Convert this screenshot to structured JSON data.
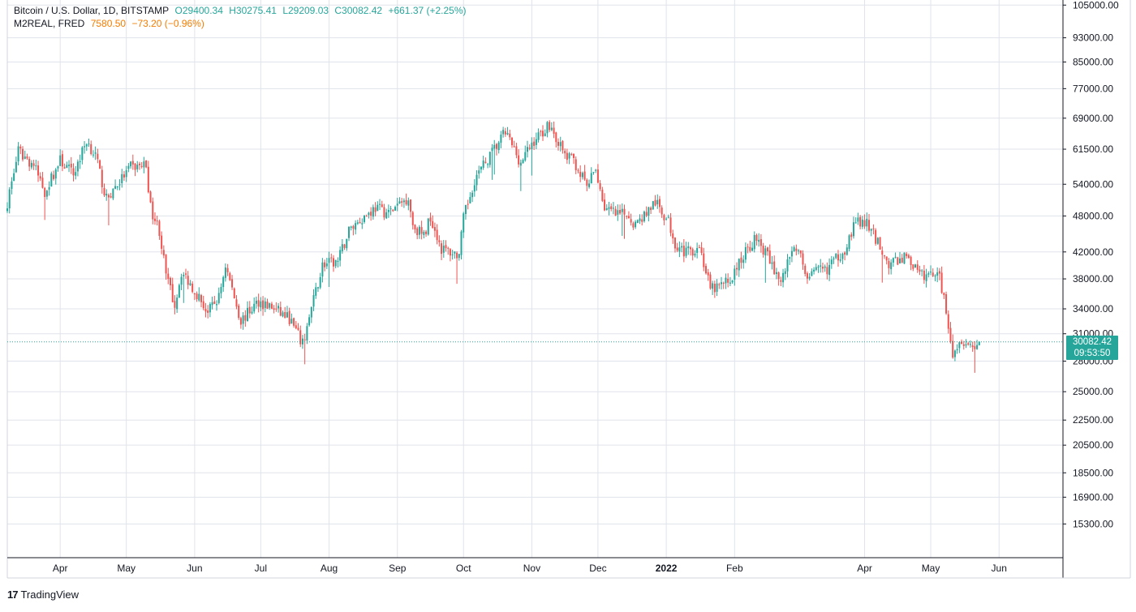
{
  "legend": {
    "symbol": "Bitcoin / U.S. Dollar, 1D, BITSTAMP",
    "open": "O29400.34",
    "high": "H30275.41",
    "low": "L29209.03",
    "close": "C30082.42",
    "change": "+661.37 (+2.25%)",
    "overlay_name": "M2REAL, FRED",
    "overlay_value": "7580.50",
    "overlay_change": "−73.20 (−0.96%)"
  },
  "price_badge": {
    "price": "30082.42",
    "countdown": "09:53:50"
  },
  "branding": {
    "logo": "17",
    "name": "TradingView"
  },
  "colors": {
    "up": "#26a69a",
    "down": "#ef5350",
    "grid": "#e0e3eb",
    "overlay": "#f57c00"
  },
  "chart_data": {
    "type": "candlestick",
    "y_scale": "log",
    "ylim": [
      13500,
      107000
    ],
    "x_start": "2021-03-08",
    "x_end": "2022-06-30",
    "last_price": 30082.42,
    "y_ticks": [
      "105000.00",
      "93000.00",
      "85000.00",
      "77000.00",
      "69000.00",
      "61500.00",
      "54000.00",
      "48000.00",
      "42000.00",
      "38000.00",
      "34000.00",
      "31000.00",
      "28000.00",
      "25000.00",
      "22500.00",
      "20500.00",
      "18500.00",
      "16900.00",
      "15300.00"
    ],
    "x_ticks": [
      {
        "label": "Apr",
        "date": "2021-04-01",
        "bold": false
      },
      {
        "label": "May",
        "date": "2021-05-01",
        "bold": false
      },
      {
        "label": "Jun",
        "date": "2021-06-01",
        "bold": false
      },
      {
        "label": "Jul",
        "date": "2021-07-01",
        "bold": false
      },
      {
        "label": "Aug",
        "date": "2021-08-01",
        "bold": false
      },
      {
        "label": "Sep",
        "date": "2021-09-01",
        "bold": false
      },
      {
        "label": "Oct",
        "date": "2021-10-01",
        "bold": false
      },
      {
        "label": "Nov",
        "date": "2021-11-01",
        "bold": false
      },
      {
        "label": "Dec",
        "date": "2021-12-01",
        "bold": false
      },
      {
        "label": "2022",
        "date": "2022-01-01",
        "bold": true
      },
      {
        "label": "Feb",
        "date": "2022-02-01",
        "bold": false
      },
      {
        "label": "Apr",
        "date": "2022-04-01",
        "bold": false
      },
      {
        "label": "May",
        "date": "2022-05-01",
        "bold": false
      },
      {
        "label": "Jun",
        "date": "2022-06-01",
        "bold": false
      }
    ],
    "close_keypoints": [
      [
        "2021-03-08",
        50500
      ],
      [
        "2021-03-13",
        61000
      ],
      [
        "2021-03-20",
        58000
      ],
      [
        "2021-03-25",
        52500
      ],
      [
        "2021-04-01",
        59000
      ],
      [
        "2021-04-07",
        56000
      ],
      [
        "2021-04-13",
        63500
      ],
      [
        "2021-04-17",
        60000
      ],
      [
        "2021-04-22",
        51000
      ],
      [
        "2021-04-26",
        53500
      ],
      [
        "2021-05-03",
        57500
      ],
      [
        "2021-05-10",
        58000
      ],
      [
        "2021-05-12",
        49500
      ],
      [
        "2021-05-16",
        45500
      ],
      [
        "2021-05-19",
        38500
      ],
      [
        "2021-05-23",
        34500
      ],
      [
        "2021-05-26",
        39000
      ],
      [
        "2021-06-01",
        36500
      ],
      [
        "2021-06-07",
        33500
      ],
      [
        "2021-06-12",
        35500
      ],
      [
        "2021-06-15",
        40000
      ],
      [
        "2021-06-22",
        32500
      ],
      [
        "2021-06-30",
        35000
      ],
      [
        "2021-07-07",
        34000
      ],
      [
        "2021-07-14",
        32800
      ],
      [
        "2021-07-20",
        29800
      ],
      [
        "2021-07-24",
        34000
      ],
      [
        "2021-07-29",
        40000
      ],
      [
        "2021-08-05",
        40500
      ],
      [
        "2021-08-10",
        45500
      ],
      [
        "2021-08-14",
        47000
      ],
      [
        "2021-08-22",
        49500
      ],
      [
        "2021-08-28",
        48500
      ],
      [
        "2021-09-06",
        51500
      ],
      [
        "2021-09-08",
        46500
      ],
      [
        "2021-09-13",
        44500
      ],
      [
        "2021-09-16",
        48000
      ],
      [
        "2021-09-21",
        42500
      ],
      [
        "2021-09-29",
        41500
      ],
      [
        "2021-10-01",
        47500
      ],
      [
        "2021-10-06",
        55000
      ],
      [
        "2021-10-15",
        61500
      ],
      [
        "2021-10-20",
        65500
      ],
      [
        "2021-10-27",
        58500
      ],
      [
        "2021-11-02",
        63500
      ],
      [
        "2021-11-09",
        67500
      ],
      [
        "2021-11-16",
        60000
      ],
      [
        "2021-11-20",
        59000
      ],
      [
        "2021-11-26",
        53500
      ],
      [
        "2021-11-30",
        57000
      ],
      [
        "2021-12-04",
        49500
      ],
      [
        "2021-12-10",
        48000
      ],
      [
        "2021-12-14",
        48500
      ],
      [
        "2021-12-18",
        46500
      ],
      [
        "2021-12-27",
        50500
      ],
      [
        "2022-01-02",
        47000
      ],
      [
        "2022-01-05",
        43500
      ],
      [
        "2022-01-10",
        41800
      ],
      [
        "2022-01-16",
        43000
      ],
      [
        "2022-01-21",
        36500
      ],
      [
        "2022-01-24",
        36800
      ],
      [
        "2022-01-30",
        37800
      ],
      [
        "2022-02-05",
        41500
      ],
      [
        "2022-02-10",
        44000
      ],
      [
        "2022-02-14",
        42500
      ],
      [
        "2022-02-22",
        37500
      ],
      [
        "2022-02-28",
        43500
      ],
      [
        "2022-03-06",
        38500
      ],
      [
        "2022-03-15",
        39500
      ],
      [
        "2022-03-23",
        42500
      ],
      [
        "2022-03-28",
        47000
      ],
      [
        "2022-04-02",
        46500
      ],
      [
        "2022-04-08",
        43000
      ],
      [
        "2022-04-12",
        40000
      ],
      [
        "2022-04-20",
        41500
      ],
      [
        "2022-04-26",
        38500
      ],
      [
        "2022-05-01",
        38500
      ],
      [
        "2022-05-04",
        39500
      ],
      [
        "2022-05-08",
        34000
      ],
      [
        "2022-05-11",
        29000
      ],
      [
        "2022-05-15",
        30500
      ],
      [
        "2022-05-20",
        29500
      ],
      [
        "2022-05-23",
        30082
      ]
    ]
  }
}
